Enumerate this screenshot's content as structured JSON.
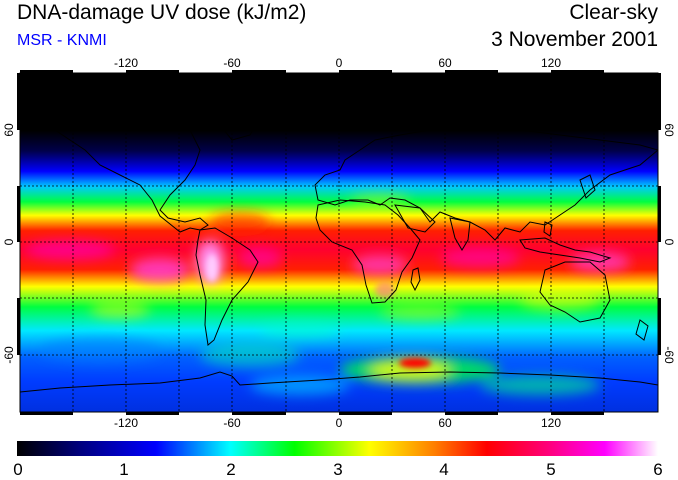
{
  "title": "DNA-damage UV dose (kJ/m2)",
  "credit": "MSR - KNMI",
  "sky_condition": "Clear-sky",
  "date": "3 November 2001",
  "map": {
    "lon_range": [
      -180,
      180
    ],
    "lat_range": [
      -90,
      90
    ],
    "lon_ticks": [
      "-120",
      "-60",
      "0",
      "60",
      "120"
    ],
    "lat_ticks_left": [
      "60",
      "0",
      "-60"
    ],
    "lat_ticks_right": [
      "60",
      "0",
      "-60"
    ],
    "field_colors": {
      "polar_night": "#000000",
      "very_low": "#000066",
      "low": "#0000ff",
      "low_mid": "#00c8ff",
      "mid": "#00ff00",
      "mid_high": "#ffff00",
      "high": "#ff0000",
      "very_high": "#ff00ff",
      "extreme": "#ff99ff"
    }
  },
  "colorbar": {
    "min": 0,
    "max": 6,
    "labels": [
      "0",
      "1",
      "2",
      "3",
      "4",
      "5",
      "6"
    ],
    "stops": [
      {
        "value": 0.0,
        "color": "#000000"
      },
      {
        "value": 0.6,
        "color": "#000080"
      },
      {
        "value": 1.3,
        "color": "#0000ff"
      },
      {
        "value": 2.0,
        "color": "#00ffff"
      },
      {
        "value": 2.6,
        "color": "#00ff00"
      },
      {
        "value": 3.3,
        "color": "#ffff00"
      },
      {
        "value": 3.9,
        "color": "#ff8000"
      },
      {
        "value": 4.4,
        "color": "#ff0000"
      },
      {
        "value": 5.0,
        "color": "#ff0080"
      },
      {
        "value": 5.5,
        "color": "#ff00ff"
      },
      {
        "value": 6.0,
        "color": "#ffffff"
      }
    ]
  }
}
